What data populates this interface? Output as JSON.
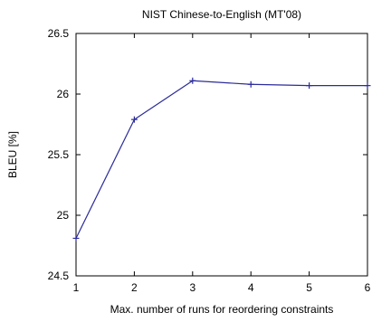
{
  "chart_data": {
    "type": "line",
    "title": "NIST Chinese-to-English (MT'08)",
    "xlabel": "Max. number of runs for reordering constraints",
    "ylabel": "BLEU [%]",
    "xlim": [
      1,
      6
    ],
    "ylim": [
      24.5,
      26.5
    ],
    "xticks": [
      1,
      2,
      3,
      4,
      5,
      6
    ],
    "yticks": [
      24.5,
      25,
      25.5,
      26,
      26.5
    ],
    "ytick_labels": [
      "24.5",
      "25",
      "25.5",
      "26",
      "26.5"
    ],
    "grid": false,
    "legend": "none",
    "series": [
      {
        "x": [
          1,
          2,
          3,
          4,
          5,
          6
        ],
        "y": [
          24.81,
          25.79,
          26.11,
          26.08,
          26.07,
          26.07
        ],
        "color": "#2b2b9a",
        "marker": "plus"
      }
    ]
  }
}
